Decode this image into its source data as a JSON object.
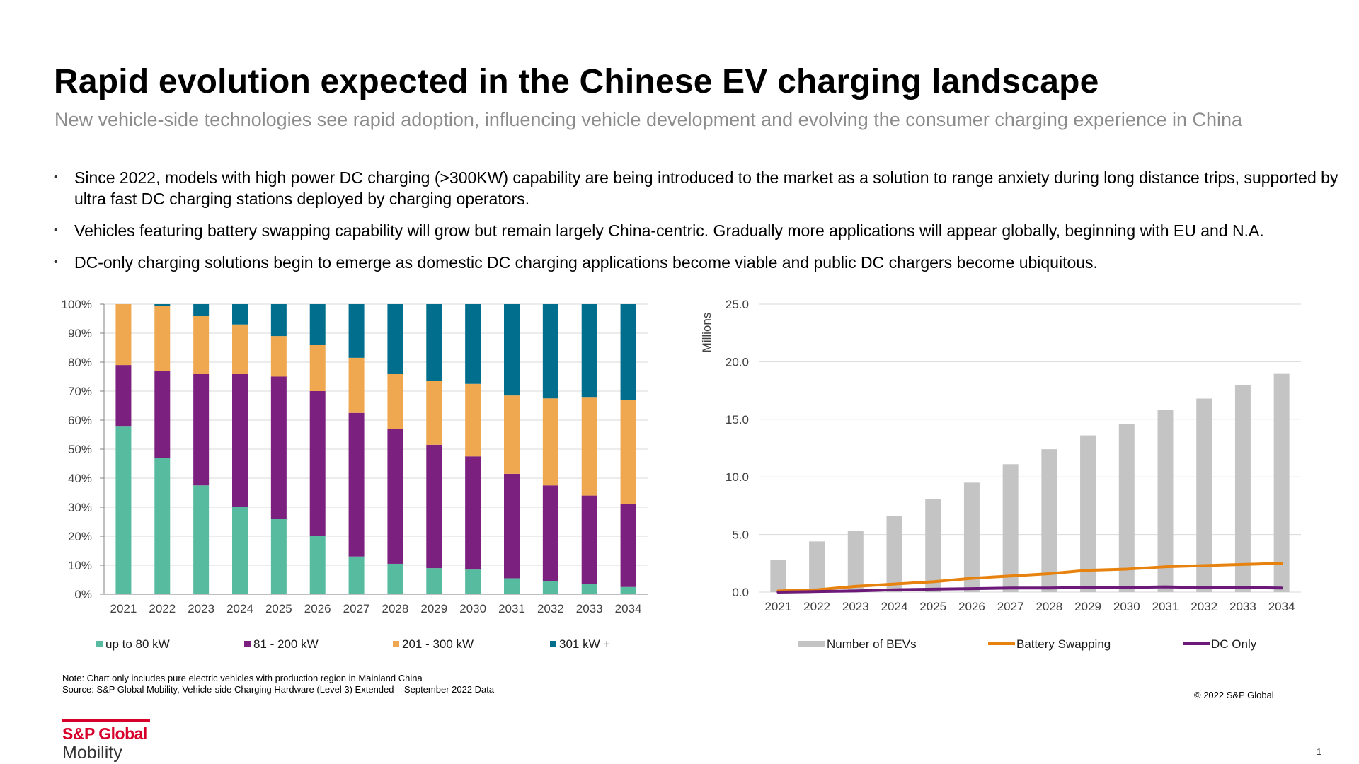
{
  "header": {
    "title": "Rapid evolution expected in the Chinese EV charging landscape",
    "subtitle": "New vehicle-side technologies see rapid adoption, influencing vehicle development and evolving the consumer charging experience in China"
  },
  "bullets": [
    "Since 2022, models with high power DC charging (>300KW) capability are being introduced to the market as a solution to range anxiety during long distance trips, supported by ultra fast DC charging stations deployed by charging operators.",
    "Vehicles featuring battery swapping capability will grow but remain largely China-centric. Gradually more applications will appear globally, beginning with EU and N.A.",
    "DC-only charging solutions begin to emerge as domestic DC charging applications become viable and public DC chargers become ubiquitous."
  ],
  "chart_data": [
    {
      "type": "bar",
      "stacked": true,
      "categories": [
        "2021",
        "2022",
        "2023",
        "2024",
        "2025",
        "2026",
        "2027",
        "2028",
        "2029",
        "2030",
        "2031",
        "2032",
        "2033",
        "2034"
      ],
      "series": [
        {
          "name": "up to 80 kW",
          "color": "#57bb9f",
          "values": [
            58,
            47,
            37.5,
            30,
            26,
            20,
            13,
            10.5,
            9,
            8.5,
            5.5,
            4.5,
            3.5,
            2.5
          ]
        },
        {
          "name": "81 - 200 kW",
          "color": "#7b207e",
          "values": [
            21,
            30,
            38.5,
            46,
            49,
            50,
            49.5,
            46.5,
            42.5,
            39,
            36,
            33,
            30.5,
            28.5
          ]
        },
        {
          "name": "201 - 300 kW",
          "color": "#f0a850",
          "values": [
            21,
            22.5,
            20,
            17,
            14,
            16,
            19,
            19,
            22,
            25,
            27,
            30,
            34,
            36
          ]
        },
        {
          "name": "301 kW +",
          "color": "#006e8c",
          "values": [
            0,
            0.5,
            4,
            7,
            11,
            14,
            18.5,
            24,
            26.5,
            27.5,
            31.5,
            32.5,
            32,
            33
          ]
        }
      ],
      "ylim": [
        0,
        100
      ],
      "yticks": [
        "0%",
        "10%",
        "20%",
        "30%",
        "40%",
        "50%",
        "60%",
        "70%",
        "80%",
        "90%",
        "100%"
      ],
      "grid": true,
      "legend": "bottom"
    },
    {
      "type": "bar+line",
      "categories": [
        "2021",
        "2022",
        "2023",
        "2024",
        "2025",
        "2026",
        "2027",
        "2028",
        "2029",
        "2030",
        "2031",
        "2032",
        "2033",
        "2034"
      ],
      "ylabel": "Millions",
      "ylim": [
        0,
        25
      ],
      "yticks": [
        "0.0",
        "5.0",
        "10.0",
        "15.0",
        "20.0",
        "25.0"
      ],
      "series": [
        {
          "name": "Number of BEVs",
          "kind": "bar",
          "color": "#c4c4c4",
          "values": [
            2.8,
            4.4,
            5.3,
            6.6,
            8.1,
            9.5,
            11.1,
            12.4,
            13.6,
            14.6,
            15.8,
            16.8,
            18.0,
            19.0
          ]
        },
        {
          "name": "Battery Swapping",
          "kind": "line",
          "color": "#e8820f",
          "values": [
            0.1,
            0.2,
            0.5,
            0.7,
            0.9,
            1.2,
            1.4,
            1.6,
            1.9,
            2.0,
            2.2,
            2.3,
            2.4,
            2.5
          ]
        },
        {
          "name": "DC Only",
          "kind": "line",
          "color": "#6b1a78",
          "values": [
            0.0,
            0.05,
            0.1,
            0.2,
            0.25,
            0.3,
            0.35,
            0.35,
            0.4,
            0.4,
            0.45,
            0.4,
            0.4,
            0.35
          ]
        }
      ],
      "grid": true,
      "legend": "bottom"
    }
  ],
  "notes": {
    "note": "Note: Chart only includes pure electric vehicles with production region in Mainland China",
    "source": "Source: S&P Global Mobility, Vehicle-side Charging Hardware (Level 3) Extended – September 2022 Data",
    "copyright": "© 2022 S&P Global"
  },
  "logo": {
    "top": "S&P Global",
    "bottom": "Mobility"
  },
  "page_number": "1"
}
